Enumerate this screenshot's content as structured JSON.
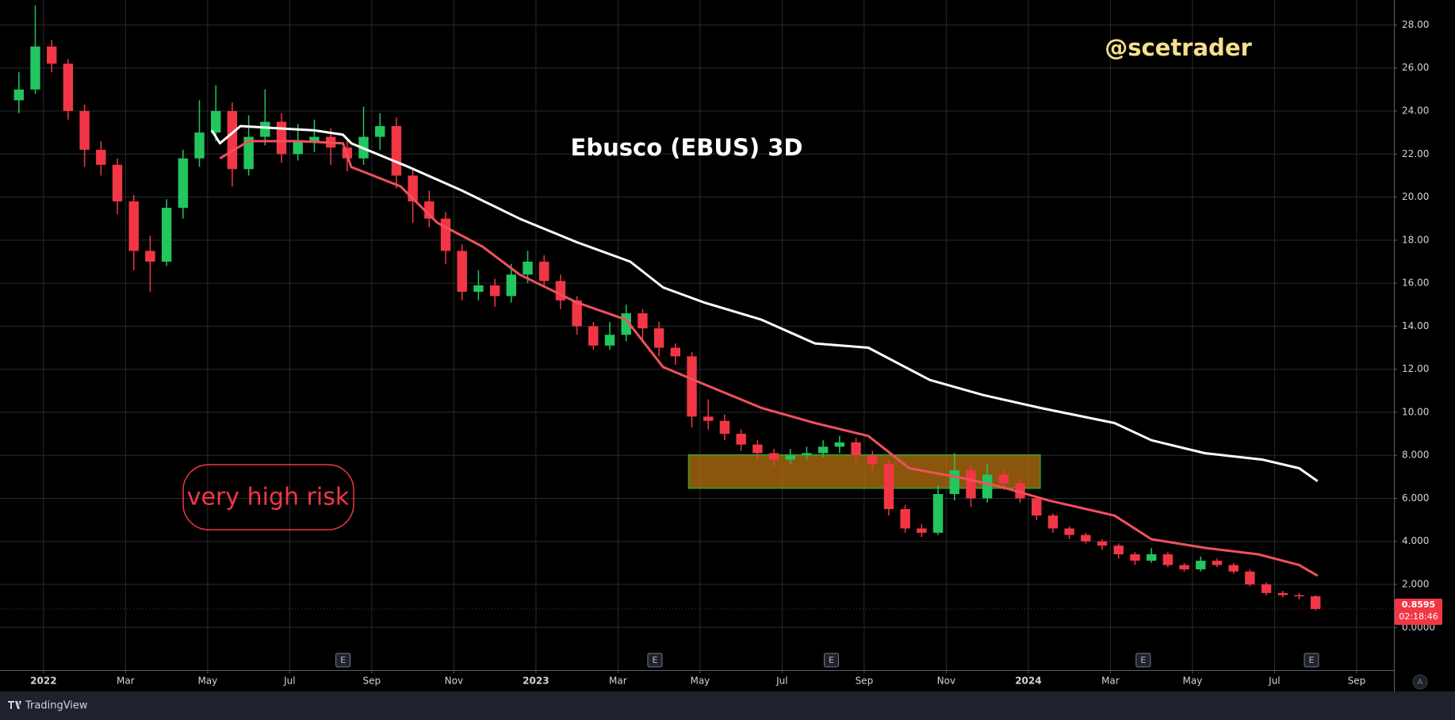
{
  "chart_data": {
    "type": "candlestick",
    "title": "Ebusco (EBUS) 3D",
    "watermark": "@scetrader",
    "annotation": "very high risk",
    "brand": "TradingView",
    "auto_scale_button": "A",
    "countdown": "02:18:46",
    "last_price": 0.8595,
    "up_color": "#22c55e",
    "down_color": "#f23645",
    "grid": true,
    "xlim": [
      -1.06,
      32.91
    ],
    "ylim": [
      -1.98,
      29.16
    ],
    "xticks": [
      {
        "value": 0,
        "label": "2022"
      },
      {
        "value": 2,
        "label": "Mar"
      },
      {
        "value": 4,
        "label": "May"
      },
      {
        "value": 6,
        "label": "Jul"
      },
      {
        "value": 8,
        "label": "Sep"
      },
      {
        "value": 10,
        "label": "Nov"
      },
      {
        "value": 12,
        "label": "2023"
      },
      {
        "value": 14,
        "label": "Mar"
      },
      {
        "value": 16,
        "label": "May"
      },
      {
        "value": 18,
        "label": "Jul"
      },
      {
        "value": 20,
        "label": "Sep"
      },
      {
        "value": 22,
        "label": "Nov"
      },
      {
        "value": 24,
        "label": "2024"
      },
      {
        "value": 26,
        "label": "Mar"
      },
      {
        "value": 28,
        "label": "May"
      },
      {
        "value": 30,
        "label": "Jul"
      },
      {
        "value": 32,
        "label": "Sep"
      }
    ],
    "yticks": [
      {
        "value": 0,
        "label": "0.0000"
      },
      {
        "value": 2,
        "label": "2.000"
      },
      {
        "value": 4,
        "label": "4.000"
      },
      {
        "value": 6,
        "label": "6.000"
      },
      {
        "value": 8,
        "label": "8.000"
      },
      {
        "value": 10,
        "label": "10.00"
      },
      {
        "value": 12,
        "label": "12.00"
      },
      {
        "value": 14,
        "label": "14.00"
      },
      {
        "value": 16,
        "label": "16.00"
      },
      {
        "value": 18,
        "label": "18.00"
      },
      {
        "value": 20,
        "label": "20.00"
      },
      {
        "value": 22,
        "label": "22.00"
      },
      {
        "value": 24,
        "label": "24.00"
      },
      {
        "value": 26,
        "label": "26.00"
      },
      {
        "value": 28,
        "label": "28.00"
      }
    ],
    "x": [
      -0.6,
      -0.2,
      0.2,
      0.6,
      1,
      1.4,
      1.8,
      2.2,
      2.6,
      3,
      3.4,
      3.8,
      4.2,
      4.6,
      5,
      5.4,
      5.8,
      6.2,
      6.6,
      7,
      7.4,
      7.8,
      8.2,
      8.6,
      9,
      9.4,
      9.8,
      10.2,
      10.6,
      11,
      11.4,
      11.8,
      12.2,
      12.6,
      13,
      13.4,
      13.8,
      14.2,
      14.6,
      15,
      15.4,
      15.8,
      16.2,
      16.6,
      17,
      17.4,
      17.8,
      18.2,
      18.6,
      19,
      19.4,
      19.8,
      20.2,
      20.6,
      21,
      21.4,
      21.8,
      22.2,
      22.6,
      23,
      23.4,
      23.8,
      24.2,
      24.6,
      25,
      25.4,
      25.8,
      26.2,
      26.6,
      27,
      27.4,
      27.8,
      28.2,
      28.6,
      29,
      29.4,
      29.8,
      30.2,
      30.6,
      31
    ],
    "open": [
      24.5,
      25.0,
      27.0,
      26.2,
      24.0,
      22.2,
      21.5,
      19.8,
      17.5,
      17.0,
      19.5,
      21.8,
      23.0,
      24.0,
      21.3,
      22.8,
      23.5,
      22.0,
      22.6,
      22.8,
      22.3,
      21.8,
      22.8,
      23.3,
      21.0,
      19.8,
      19.0,
      17.5,
      15.6,
      15.9,
      15.4,
      16.4,
      17.0,
      16.1,
      15.2,
      14.0,
      13.1,
      13.6,
      14.6,
      13.9,
      13.0,
      12.6,
      9.8,
      9.6,
      9.0,
      8.5,
      8.1,
      7.8,
      8.0,
      8.1,
      8.4,
      8.6,
      8.0,
      7.6,
      5.5,
      4.6,
      4.4,
      6.2,
      7.3,
      6.0,
      7.1,
      6.7,
      6.0,
      5.2,
      4.6,
      4.3,
      4.0,
      3.8,
      3.4,
      3.1,
      3.4,
      2.9,
      2.7,
      3.1,
      2.9,
      2.6,
      2.0,
      1.6,
      1.5,
      1.45
    ],
    "high": [
      25.8,
      28.9,
      27.3,
      26.4,
      24.3,
      22.6,
      21.8,
      20.1,
      18.2,
      19.9,
      22.2,
      24.5,
      25.2,
      24.4,
      23.8,
      25.0,
      23.9,
      23.4,
      23.6,
      23.2,
      22.6,
      24.2,
      23.9,
      23.7,
      21.3,
      20.3,
      19.3,
      17.8,
      16.6,
      16.2,
      16.9,
      17.5,
      17.3,
      16.4,
      15.4,
      14.2,
      14.2,
      15.0,
      14.8,
      14.2,
      13.2,
      12.8,
      10.6,
      9.9,
      9.2,
      8.7,
      8.3,
      8.3,
      8.4,
      8.7,
      8.9,
      8.8,
      8.2,
      7.8,
      5.7,
      4.8,
      6.6,
      8.1,
      7.5,
      7.6,
      7.3,
      6.9,
      6.1,
      5.3,
      4.7,
      4.4,
      4.1,
      3.9,
      3.5,
      3.7,
      3.5,
      3.0,
      3.3,
      3.2,
      3.0,
      2.7,
      2.1,
      1.7,
      1.6,
      1.5
    ],
    "low": [
      23.9,
      24.8,
      25.8,
      23.6,
      21.4,
      21.0,
      19.2,
      16.6,
      15.6,
      16.8,
      19.0,
      21.4,
      22.6,
      20.5,
      21.0,
      22.4,
      21.6,
      21.7,
      22.1,
      21.5,
      21.2,
      21.5,
      22.2,
      20.4,
      18.8,
      18.6,
      16.9,
      15.2,
      15.2,
      14.9,
      15.1,
      16.0,
      15.8,
      14.8,
      13.6,
      12.9,
      12.9,
      13.3,
      13.4,
      12.6,
      12.2,
      9.3,
      9.2,
      8.7,
      8.2,
      7.8,
      7.5,
      7.6,
      7.8,
      7.9,
      8.1,
      7.7,
      7.3,
      5.2,
      4.4,
      4.2,
      4.3,
      5.9,
      5.6,
      5.8,
      6.4,
      5.8,
      5.0,
      4.4,
      4.1,
      3.9,
      3.6,
      3.2,
      2.9,
      3.0,
      2.8,
      2.6,
      2.6,
      2.8,
      2.5,
      1.9,
      1.5,
      1.4,
      1.3,
      0.8
    ],
    "close": [
      25.0,
      27.0,
      26.2,
      24.0,
      22.2,
      21.5,
      19.8,
      17.5,
      17.0,
      19.5,
      21.8,
      23.0,
      24.0,
      21.3,
      22.8,
      23.5,
      22.0,
      22.6,
      22.8,
      22.3,
      21.8,
      22.8,
      23.3,
      21.0,
      19.8,
      19.0,
      17.5,
      15.6,
      15.9,
      15.4,
      16.4,
      17.0,
      16.1,
      15.2,
      14.0,
      13.1,
      13.6,
      14.6,
      13.9,
      13.0,
      12.6,
      9.8,
      9.6,
      9.0,
      8.5,
      8.1,
      7.8,
      8.0,
      8.1,
      8.4,
      8.6,
      8.0,
      7.6,
      5.5,
      4.6,
      4.4,
      6.2,
      7.3,
      6.0,
      7.1,
      6.7,
      6.0,
      5.2,
      4.6,
      4.3,
      4.0,
      3.8,
      3.4,
      3.1,
      3.4,
      2.9,
      2.7,
      3.1,
      2.9,
      2.6,
      2.0,
      1.6,
      1.5,
      1.45,
      0.8595
    ],
    "lines": [
      {
        "color": "#ffffff",
        "x": [
          4.1,
          4.3,
          4.8,
          5.7,
          6.6,
          7.3,
          7.5,
          8.9,
          10.2,
          11.6,
          13.0,
          14.3,
          15.1,
          16.1,
          17.5,
          18.8,
          20.1,
          21.6,
          22.9,
          24.3,
          26.1,
          27.0,
          28.3,
          29.7,
          30.6,
          31.05
        ],
        "values": [
          23.1,
          22.5,
          23.3,
          23.2,
          23.1,
          22.9,
          22.5,
          21.4,
          20.3,
          19.0,
          17.9,
          17.0,
          15.8,
          15.1,
          14.3,
          13.2,
          13.0,
          11.5,
          10.8,
          10.2,
          9.5,
          8.7,
          8.1,
          7.8,
          7.4,
          6.8
        ]
      },
      {
        "color": "#f0505e",
        "x": [
          4.3,
          5.0,
          6.2,
          7.3,
          7.5,
          8.7,
          9.6,
          10.7,
          11.6,
          13.0,
          14.2,
          15.1,
          16.1,
          17.5,
          18.8,
          20.1,
          21.1,
          22.5,
          23.4,
          24.5,
          26.1,
          27.0,
          28.3,
          29.6,
          30.6,
          31.05
        ],
        "values": [
          21.8,
          22.6,
          22.6,
          22.5,
          21.4,
          20.5,
          18.8,
          17.7,
          16.4,
          15.1,
          14.3,
          12.1,
          11.3,
          10.2,
          9.5,
          8.9,
          7.4,
          6.9,
          6.5,
          5.9,
          5.2,
          4.1,
          3.7,
          3.4,
          2.9,
          2.4
        ]
      }
    ],
    "zones": [
      {
        "x": [
          15.72,
          24.29
        ],
        "y": [
          6.47,
          8.02
        ],
        "color": "#b8730f"
      }
    ],
    "earnings": [
      {
        "x": 7.3,
        "label": "E"
      },
      {
        "x": 14.9,
        "label": "E"
      },
      {
        "x": 19.2,
        "label": "E"
      },
      {
        "x": 26.8,
        "label": "E"
      },
      {
        "x": 30.9,
        "label": "E"
      }
    ]
  }
}
